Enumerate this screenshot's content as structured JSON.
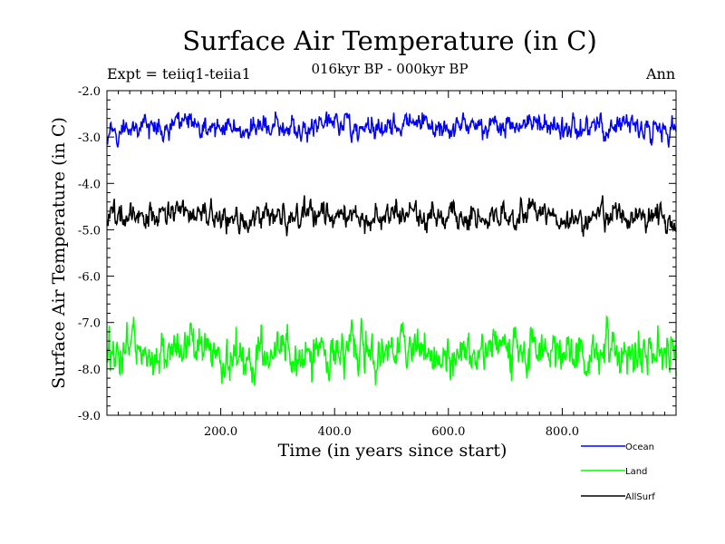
{
  "title": "Surface Air Temperature (in C)",
  "subtitle": "016kyr BP - 000kyr BP",
  "experiment_label": "Expt = teiiq1-teiia1",
  "period_label": "Ann",
  "colors": {
    "ocean": "#0000ff",
    "land": "#00ff00",
    "allsurf": "#000000"
  },
  "chart_data": {
    "type": "line",
    "title": "Surface Air Temperature (in C)",
    "subtitle": "016kyr BP - 000kyr BP",
    "xlabel": "Time (in years since start)",
    "ylabel": "Surface Air Temperature (in C)",
    "xlim": [
      0,
      1000
    ],
    "ylim": [
      -9.0,
      -2.0
    ],
    "xticks": [
      200,
      400,
      600,
      800
    ],
    "xtick_labels": [
      "200.0",
      "400.0",
      "600.0",
      "800.0"
    ],
    "yticks": [
      -2.0,
      -3.0,
      -4.0,
      -5.0,
      -6.0,
      -7.0,
      -8.0,
      -9.0
    ],
    "ytick_labels": [
      "-2.0",
      "-3.0",
      "-4.0",
      "-5.0",
      "-6.0",
      "-7.0",
      "-8.0",
      "-9.0"
    ],
    "grid": false,
    "legend_position": "bottom-right, outside plot",
    "series": [
      {
        "name": "Ocean",
        "color": "#0000ff",
        "x": [
          0,
          50,
          100,
          150,
          200,
          250,
          300,
          350,
          400,
          450,
          500,
          550,
          600,
          650,
          700,
          750,
          800,
          850,
          900,
          950,
          1000
        ],
        "y": [
          -2.8,
          -2.75,
          -2.85,
          -2.7,
          -2.8,
          -2.95,
          -2.75,
          -2.8,
          -2.7,
          -2.85,
          -2.8,
          -2.7,
          -2.8,
          -2.75,
          -2.85,
          -2.7,
          -2.8,
          -2.85,
          -2.75,
          -2.8,
          -2.85
        ],
        "min": -3.3,
        "max": -2.45
      },
      {
        "name": "Land",
        "color": "#00ff00",
        "x": [
          0,
          50,
          100,
          150,
          200,
          250,
          300,
          350,
          400,
          450,
          500,
          550,
          600,
          650,
          700,
          750,
          800,
          850,
          900,
          950,
          1000
        ],
        "y": [
          -7.7,
          -7.6,
          -7.7,
          -7.5,
          -7.8,
          -7.7,
          -7.6,
          -7.7,
          -7.6,
          -7.7,
          -7.5,
          -7.6,
          -7.7,
          -7.6,
          -7.5,
          -7.7,
          -7.6,
          -7.7,
          -7.6,
          -7.7,
          -7.6
        ],
        "min": -8.5,
        "max": -6.85
      },
      {
        "name": "AllSurf",
        "color": "#000000",
        "x": [
          0,
          50,
          100,
          150,
          200,
          250,
          300,
          350,
          400,
          450,
          500,
          550,
          600,
          650,
          700,
          750,
          800,
          850,
          900,
          950,
          1000
        ],
        "y": [
          -4.8,
          -4.7,
          -4.75,
          -4.6,
          -4.75,
          -4.85,
          -4.7,
          -4.75,
          -4.65,
          -4.75,
          -4.7,
          -4.65,
          -4.75,
          -4.7,
          -4.75,
          -4.6,
          -4.7,
          -4.75,
          -4.65,
          -4.7,
          -4.75
        ],
        "min": -5.2,
        "max": -4.2
      }
    ]
  }
}
